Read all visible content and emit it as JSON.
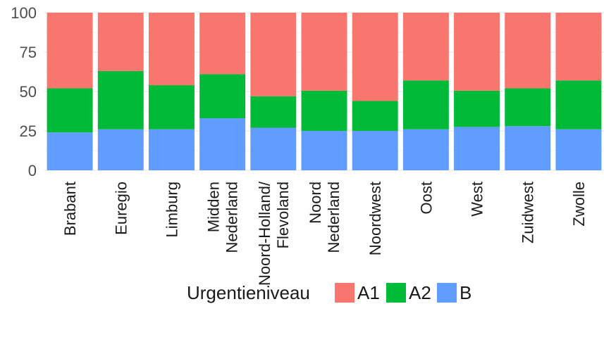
{
  "chart_data": {
    "type": "bar",
    "stacked": true,
    "categories": [
      [
        "Brabant"
      ],
      [
        "Euregio"
      ],
      [
        "Limburg"
      ],
      [
        "Midden",
        "Nederland"
      ],
      [
        "Noord-Holland/",
        "Flevoland"
      ],
      [
        "Noord",
        "Nederland"
      ],
      [
        "Noordwest"
      ],
      [
        "Oost"
      ],
      [
        "West"
      ],
      [
        "Zuidwest"
      ],
      [
        "Zwolle"
      ]
    ],
    "series": [
      {
        "name": "B",
        "color": "#619CFF",
        "values": [
          24,
          26,
          26,
          33,
          27,
          25,
          25,
          26,
          27.5,
          28,
          26
        ]
      },
      {
        "name": "A2",
        "color": "#00BA38",
        "values": [
          28,
          37,
          28,
          28,
          20,
          25.5,
          19,
          31,
          23,
          24,
          31
        ]
      },
      {
        "name": "A1",
        "color": "#F8766D",
        "values": [
          48,
          37,
          46,
          39,
          53,
          49.5,
          56,
          43,
          49.5,
          48,
          43
        ]
      }
    ],
    "y_ticks": [
      "0",
      "25",
      "50",
      "75",
      "100"
    ],
    "ylim": [
      0,
      100
    ],
    "grid": true,
    "legend": {
      "title": "Urgentieniveau",
      "position": "bottom",
      "order": [
        "A1",
        "A2",
        "B"
      ]
    }
  }
}
